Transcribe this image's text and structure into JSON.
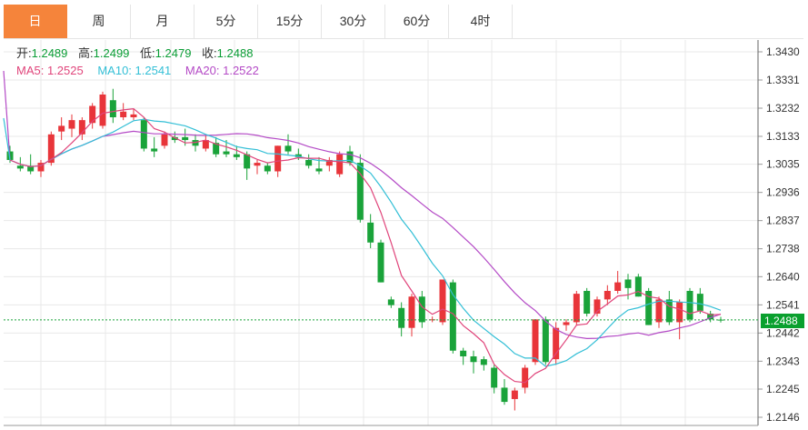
{
  "tabs": [
    {
      "label": "日",
      "active": true
    },
    {
      "label": "周",
      "active": false
    },
    {
      "label": "月",
      "active": false
    },
    {
      "label": "5分",
      "active": false
    },
    {
      "label": "15分",
      "active": false
    },
    {
      "label": "30分",
      "active": false
    },
    {
      "label": "60分",
      "active": false
    },
    {
      "label": "4时",
      "active": false
    }
  ],
  "ohlc_info": {
    "open_label": "开:",
    "open": "1.2489",
    "high_label": "高:",
    "high": "1.2499",
    "low_label": "低:",
    "low": "1.2479",
    "close_label": "收:",
    "close": "1.2488"
  },
  "ma_info": {
    "ma5": "MA5: 1.2525",
    "ma10": "MA10: 1.2541",
    "ma20": "MA20: 1.2522"
  },
  "last_price": "1.2488",
  "colors": {
    "up": "#e8353a",
    "down": "#1aa33a",
    "ma5": "#e0457b",
    "ma10": "#33bfd6",
    "ma20": "#b44ac6",
    "accent": "#f5843b",
    "grid": "#e8e8e8"
  },
  "chart_data": {
    "type": "candlestick",
    "y_ticks": [
      "1.3430",
      "1.3331",
      "1.3232",
      "1.3133",
      "1.3035",
      "1.2936",
      "1.2837",
      "1.2738",
      "1.2640",
      "1.2541",
      "1.2442",
      "1.2343",
      "1.2245",
      "1.2146"
    ],
    "ylim": [
      1.214,
      1.347
    ],
    "grid": true,
    "candles": [
      [
        1.308,
        1.31,
        1.304,
        1.305
      ],
      [
        1.303,
        1.306,
        1.301,
        1.302
      ],
      [
        1.303,
        1.307,
        1.3,
        1.301
      ],
      [
        1.301,
        1.305,
        1.299,
        1.304
      ],
      [
        1.304,
        1.315,
        1.303,
        1.314
      ],
      [
        1.315,
        1.32,
        1.312,
        1.317
      ],
      [
        1.316,
        1.321,
        1.313,
        1.319
      ],
      [
        1.314,
        1.32,
        1.312,
        1.319
      ],
      [
        1.318,
        1.325,
        1.316,
        1.324
      ],
      [
        1.317,
        1.329,
        1.316,
        1.328
      ],
      [
        1.326,
        1.33,
        1.318,
        1.32
      ],
      [
        1.32,
        1.325,
        1.319,
        1.322
      ],
      [
        1.32,
        1.323,
        1.319,
        1.321
      ],
      [
        1.319,
        1.32,
        1.308,
        1.309
      ],
      [
        1.309,
        1.313,
        1.306,
        1.308
      ],
      [
        1.31,
        1.315,
        1.309,
        1.314
      ],
      [
        1.313,
        1.315,
        1.311,
        1.312
      ],
      [
        1.313,
        1.316,
        1.31,
        1.312
      ],
      [
        1.312,
        1.314,
        1.308,
        1.31
      ],
      [
        1.309,
        1.314,
        1.308,
        1.312
      ],
      [
        1.311,
        1.313,
        1.306,
        1.307
      ],
      [
        1.308,
        1.312,
        1.306,
        1.307
      ],
      [
        1.307,
        1.31,
        1.305,
        1.306
      ],
      [
        1.307,
        1.308,
        1.298,
        1.302
      ],
      [
        1.303,
        1.305,
        1.3,
        1.304
      ],
      [
        1.303,
        1.304,
        1.3,
        1.301
      ],
      [
        1.301,
        1.31,
        1.299,
        1.31
      ],
      [
        1.31,
        1.314,
        1.307,
        1.308
      ],
      [
        1.307,
        1.309,
        1.305,
        1.306
      ],
      [
        1.305,
        1.307,
        1.302,
        1.303
      ],
      [
        1.302,
        1.306,
        1.3,
        1.301
      ],
      [
        1.303,
        1.306,
        1.301,
        1.305
      ],
      [
        1.3,
        1.308,
        1.299,
        1.307
      ],
      [
        1.308,
        1.31,
        1.303,
        1.304
      ],
      [
        1.304,
        1.307,
        1.283,
        1.284
      ],
      [
        1.283,
        1.286,
        1.274,
        1.276
      ],
      [
        1.276,
        1.277,
        1.262,
        1.262
      ],
      [
        1.256,
        1.257,
        1.253,
        1.254
      ],
      [
        1.253,
        1.255,
        1.243,
        1.246
      ],
      [
        1.246,
        1.258,
        1.243,
        1.257
      ],
      [
        1.257,
        1.259,
        1.246,
        1.248
      ],
      [
        1.249,
        1.25,
        1.248,
        1.249
      ],
      [
        1.248,
        1.263,
        1.247,
        1.263
      ],
      [
        1.262,
        1.263,
        1.237,
        1.238
      ],
      [
        1.238,
        1.239,
        1.233,
        1.236
      ],
      [
        1.236,
        1.238,
        1.23,
        1.234
      ],
      [
        1.235,
        1.236,
        1.231,
        1.233
      ],
      [
        1.232,
        1.233,
        1.223,
        1.225
      ],
      [
        1.225,
        1.228,
        1.219,
        1.22
      ],
      [
        1.221,
        1.225,
        1.217,
        1.224
      ],
      [
        1.225,
        1.233,
        1.223,
        1.232
      ],
      [
        1.234,
        1.249,
        1.233,
        1.249
      ],
      [
        1.249,
        1.25,
        1.233,
        1.234
      ],
      [
        1.235,
        1.248,
        1.233,
        1.246
      ],
      [
        1.247,
        1.249,
        1.245,
        1.248
      ],
      [
        1.248,
        1.259,
        1.247,
        1.258
      ],
      [
        1.259,
        1.26,
        1.25,
        1.251
      ],
      [
        1.251,
        1.257,
        1.25,
        1.256
      ],
      [
        1.256,
        1.261,
        1.254,
        1.259
      ],
      [
        1.259,
        1.266,
        1.258,
        1.262
      ],
      [
        1.263,
        1.265,
        1.256,
        1.26
      ],
      [
        1.264,
        1.265,
        1.257,
        1.257
      ],
      [
        1.259,
        1.26,
        1.247,
        1.247
      ],
      [
        1.248,
        1.257,
        1.246,
        1.256
      ],
      [
        1.256,
        1.259,
        1.247,
        1.248
      ],
      [
        1.248,
        1.256,
        1.242,
        1.255
      ],
      [
        1.259,
        1.26,
        1.248,
        1.249
      ],
      [
        1.258,
        1.26,
        1.251,
        1.252
      ],
      [
        1.251,
        1.252,
        1.248,
        1.249
      ],
      [
        1.2489,
        1.2499,
        1.2479,
        1.2488
      ]
    ],
    "ma5": [
      [
        0,
        null
      ],
      [
        4,
        1.303
      ],
      [
        7,
        1.311
      ],
      [
        10,
        1.319
      ],
      [
        13,
        1.317
      ],
      [
        16,
        1.313
      ],
      [
        19,
        1.312
      ],
      [
        22,
        1.309
      ],
      [
        25,
        1.306
      ],
      [
        28,
        1.307
      ],
      [
        31,
        1.306
      ],
      [
        34,
        1.3
      ],
      [
        36,
        1.29
      ],
      [
        38,
        1.27
      ],
      [
        40,
        1.256
      ],
      [
        42,
        1.252
      ],
      [
        44,
        1.25
      ],
      [
        46,
        1.243
      ],
      [
        48,
        1.234
      ],
      [
        50,
        1.226
      ],
      [
        52,
        1.227
      ],
      [
        54,
        1.233
      ],
      [
        56,
        1.242
      ],
      [
        58,
        1.248
      ],
      [
        60,
        1.255
      ],
      [
        62,
        1.259
      ],
      [
        64,
        1.259
      ],
      [
        66,
        1.255
      ],
      [
        68,
        1.252
      ],
      [
        70,
        1.251
      ],
      [
        72,
        1.25
      ]
    ]
  }
}
